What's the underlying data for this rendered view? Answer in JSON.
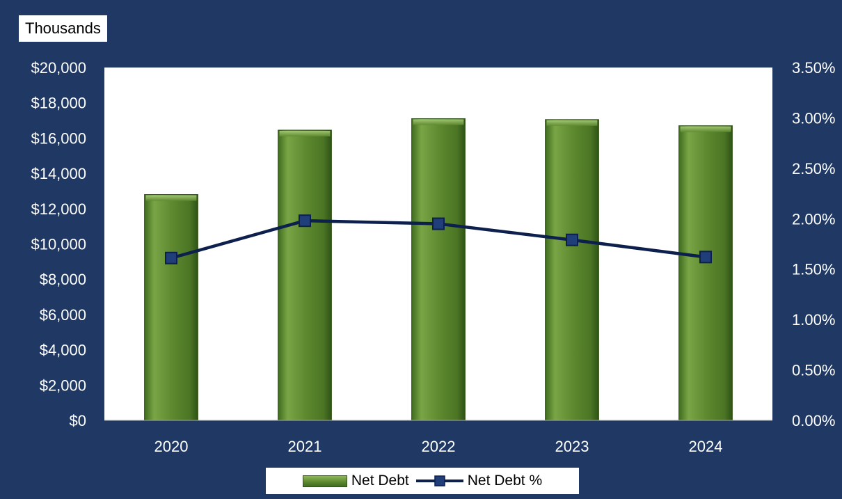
{
  "units_label": "Thousands",
  "colors": {
    "background": "#1f3864",
    "plot_area": "#ffffff",
    "bar_fill": "#5f8a30",
    "line": "#0d1f4d",
    "axis_text": "#ffffff"
  },
  "legend": {
    "bar_label": "Net Debt",
    "line_label": "Net Debt %"
  },
  "chart_data": {
    "type": "bar",
    "categories": [
      "2020",
      "2021",
      "2022",
      "2023",
      "2024"
    ],
    "series": [
      {
        "name": "Net Debt",
        "type": "bar",
        "axis": "left",
        "values": [
          12800,
          16450,
          17100,
          17050,
          16700
        ]
      },
      {
        "name": "Net Debt %",
        "type": "line",
        "axis": "right",
        "values": [
          1.61,
          1.98,
          1.95,
          1.79,
          1.62
        ]
      }
    ],
    "ylim_left": [
      0,
      20000
    ],
    "yticks_left": [
      "$0",
      "$2,000",
      "$4,000",
      "$6,000",
      "$8,000",
      "$10,000",
      "$12,000",
      "$14,000",
      "$16,000",
      "$18,000",
      "$20,000"
    ],
    "ylim_right": [
      0,
      3.5
    ],
    "yticks_right": [
      "0.00%",
      "0.50%",
      "1.00%",
      "1.50%",
      "2.00%",
      "2.50%",
      "3.00%",
      "3.50%"
    ],
    "legend_position": "bottom",
    "grid": false
  }
}
